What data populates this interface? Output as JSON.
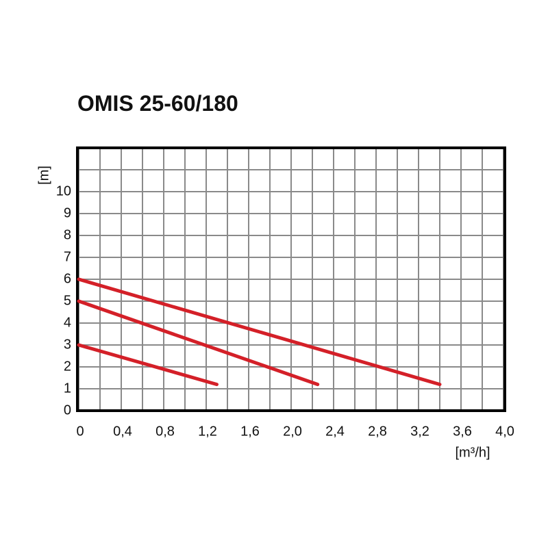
{
  "chart_data": {
    "type": "line",
    "title": "OMIS 25-60/180",
    "x_label": "[m³/h]",
    "y_label": "[m]",
    "xlim": [
      0,
      4.0
    ],
    "ylim": [
      0,
      12
    ],
    "xticks": [
      0,
      {
        "value": 0.4,
        "label": "0,4"
      },
      {
        "value": 0.8,
        "label": "0,8"
      },
      {
        "value": 1.2,
        "label": "1,2"
      },
      {
        "value": 1.6,
        "label": "1,6"
      },
      {
        "value": 2.0,
        "label": "2,0"
      },
      {
        "value": 2.4,
        "label": "2,4"
      },
      {
        "value": 2.8,
        "label": "2,8"
      },
      {
        "value": 3.2,
        "label": "3,2"
      },
      {
        "value": 3.6,
        "label": "3,6"
      },
      {
        "value": 4.0,
        "label": "4,0"
      }
    ],
    "x_minor_grid": [
      0.2,
      0.6,
      1.0,
      1.4,
      1.8,
      2.2,
      2.6,
      3.0,
      3.4,
      3.8
    ],
    "yticks": [
      0,
      1,
      2,
      3,
      4,
      5,
      6,
      7,
      8,
      9,
      10
    ],
    "y_extra_grid": [
      11
    ],
    "grid": true,
    "series": [
      {
        "color": "#d42028",
        "x": [
          0,
          1.3
        ],
        "values": [
          3,
          1.2
        ]
      },
      {
        "color": "#d42028",
        "x": [
          0,
          2.25
        ],
        "values": [
          5,
          1.2
        ]
      },
      {
        "color": "#d42028",
        "x": [
          0,
          3.4
        ],
        "values": [
          6,
          1.2
        ]
      }
    ]
  }
}
